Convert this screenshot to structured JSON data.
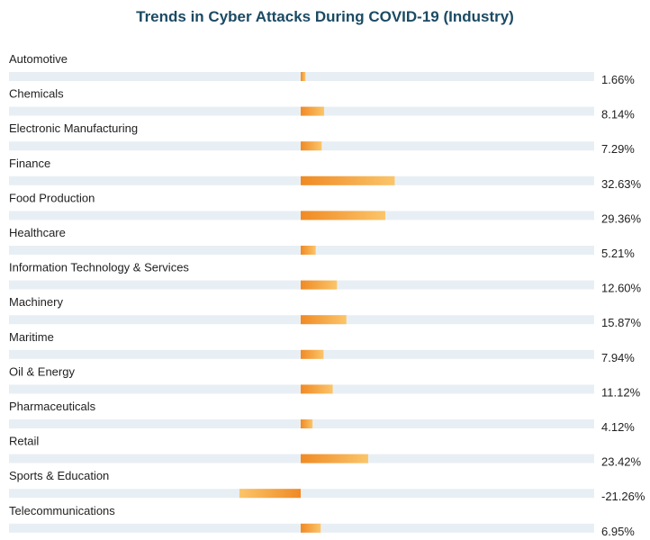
{
  "chart_data": {
    "type": "bar",
    "title": "Trends in Cyber Attacks During COVID-19 (Industry)",
    "categories": [
      "Automotive",
      "Chemicals",
      "Electronic Manufacturing",
      "Finance",
      "Food Production",
      "Healthcare",
      "Information Technology & Services",
      "Machinery",
      "Maritime",
      "Oil & Energy",
      "Pharmaceuticals",
      "Retail",
      "Sports & Education",
      "Telecommunications"
    ],
    "values": [
      1.66,
      8.14,
      7.29,
      32.63,
      29.36,
      5.21,
      12.6,
      15.87,
      7.94,
      11.12,
      4.12,
      23.42,
      -21.26,
      6.95
    ],
    "value_labels": [
      "1.66%",
      "8.14%",
      "7.29%",
      "32.63%",
      "29.36%",
      "5.21%",
      "12.60%",
      "15.87%",
      "7.94%",
      "11.12%",
      "4.12%",
      "23.42%",
      "-21.26%",
      "6.95%"
    ],
    "orientation": "horizontal",
    "bar_color_start": "#f08a24",
    "bar_color_end": "#fbc56a",
    "track_color": "#e8eff4",
    "title_color": "#1b4a63",
    "grid": false,
    "legend": "none"
  }
}
